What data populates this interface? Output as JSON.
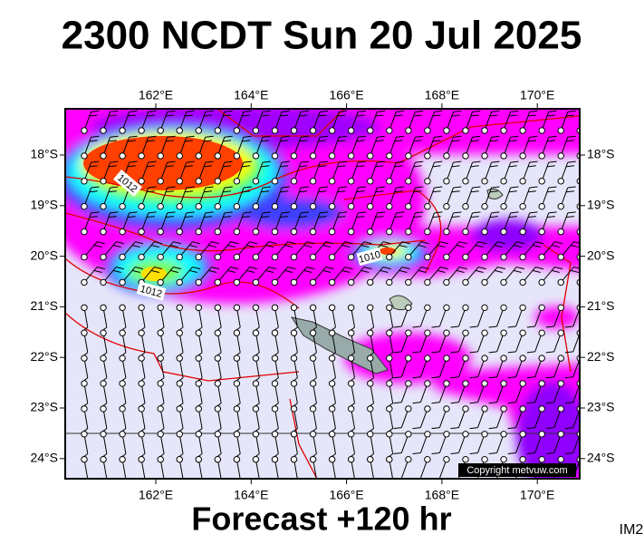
{
  "header": {
    "title": "2300 NCDT Sun 20 Jul 2025"
  },
  "axes": {
    "lon_labels": [
      "162°E",
      "164°E",
      "166°E",
      "168°E",
      "170°E"
    ],
    "lat_labels": [
      "18°S",
      "19°S",
      "20°S",
      "21°S",
      "22°S",
      "23°S",
      "24°S"
    ]
  },
  "isobar_labels": [
    "1010",
    "1012",
    "1012"
  ],
  "copyright": "Copyright metvuw.com",
  "footer": "Forecast +120 hr",
  "corner_label": "IM2"
}
